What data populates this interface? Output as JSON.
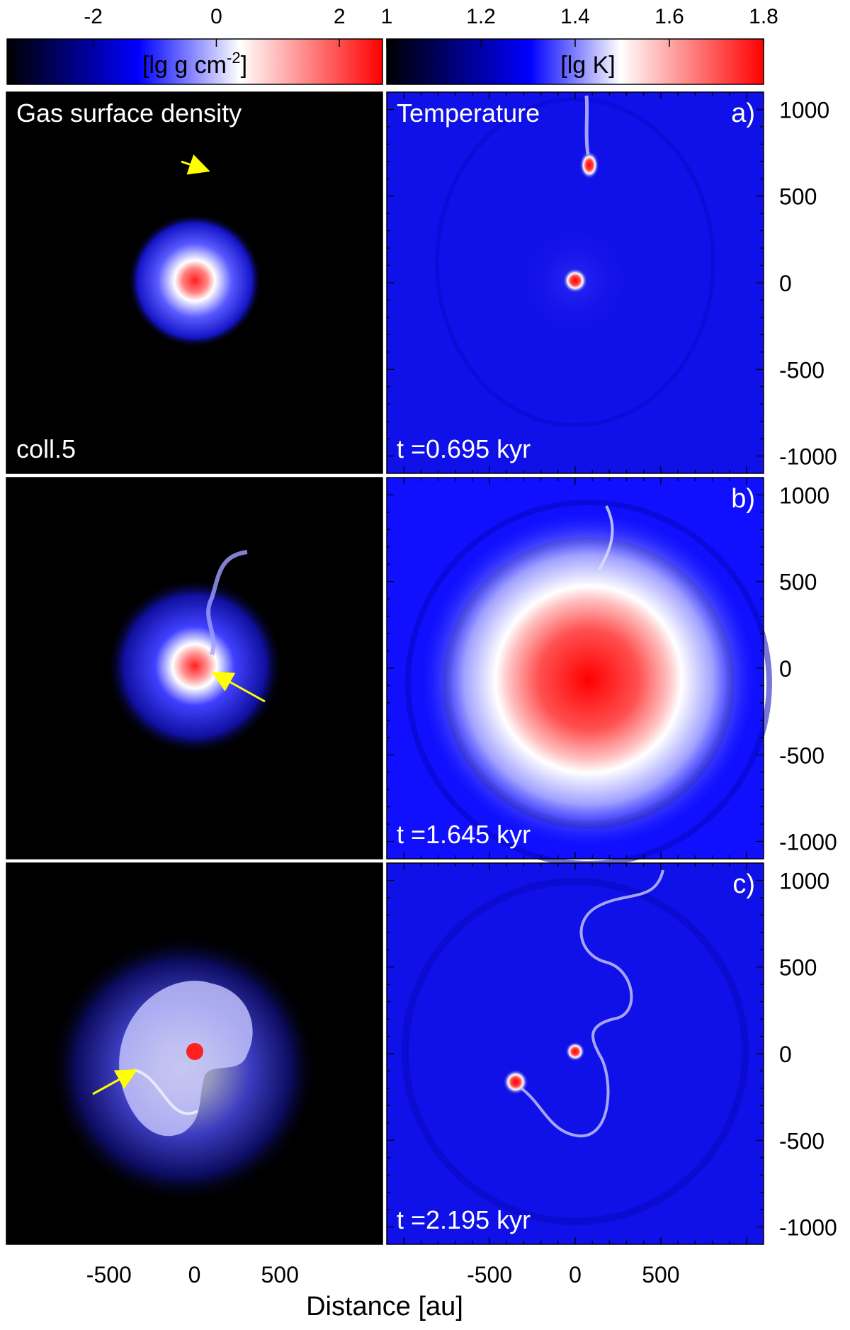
{
  "figure": {
    "xlabel": "Distance [au]",
    "colorbars": [
      {
        "label": "[lg g cm",
        "label_sup": "-2",
        "label_end": "]",
        "ticks": [
          "-2",
          "0",
          "2"
        ],
        "tick_values": [
          -2,
          0,
          2
        ],
        "range": [
          -3.4,
          2.7
        ]
      },
      {
        "label": "[lg K]",
        "ticks": [
          "1",
          "1.2",
          "1.4",
          "1.6",
          "1.8"
        ],
        "tick_values": [
          1,
          1.2,
          1.4,
          1.6,
          1.8
        ],
        "range": [
          1,
          1.8
        ]
      }
    ],
    "x_ticks": [
      "-500",
      "0",
      "500"
    ],
    "x_tick_values": [
      -500,
      0,
      500
    ],
    "y_ticks": [
      "1000",
      "500",
      "0",
      "-500",
      "-1000"
    ],
    "y_tick_values": [
      1000,
      500,
      0,
      -500,
      -1000
    ],
    "panel_titles": [
      "Gas surface density",
      "Temperature"
    ],
    "model_label": "coll.5",
    "rows": [
      {
        "tag": "a)",
        "time": "t =0.695 kyr"
      },
      {
        "tag": "b)",
        "time": "t =1.645 kyr"
      },
      {
        "tag": "c)",
        "time": "t =2.195 kyr"
      }
    ],
    "colors": {
      "cmap_low": "#000000",
      "cmap_mid": "#0000ff",
      "cmap_white": "#ffffff",
      "cmap_high": "#ff0000",
      "arrow": "#ffff00"
    }
  },
  "chart_data": {
    "type": "heatmap",
    "description_units": "au",
    "xlim": [
      -1100,
      1100
    ],
    "ylim": [
      -1100,
      1100
    ],
    "panels": [
      {
        "row": "a)",
        "quantity": "Gas surface density",
        "disk_center": [
          0,
          0
        ],
        "disk_radius_au": 380,
        "intruder_arrow": true
      },
      {
        "row": "a)",
        "quantity": "Temperature",
        "hot_spots": [
          [
            0,
            0
          ],
          [
            75,
            670
          ]
        ]
      },
      {
        "row": "b)",
        "quantity": "Gas surface density",
        "disk_center": [
          0,
          0
        ],
        "disk_radius_au": 480,
        "intruder_arrow": true
      },
      {
        "row": "b)",
        "quantity": "Temperature",
        "hot_center": [
          60,
          -50
        ],
        "hot_radius_au": 250
      },
      {
        "row": "c)",
        "quantity": "Gas surface density",
        "disk_center": [
          -30,
          -30
        ],
        "disk_radius_au": 720,
        "intruder_arrow": true
      },
      {
        "row": "c)",
        "quantity": "Temperature",
        "hot_spots": [
          [
            0,
            0
          ],
          [
            -360,
            -170
          ]
        ]
      }
    ]
  }
}
